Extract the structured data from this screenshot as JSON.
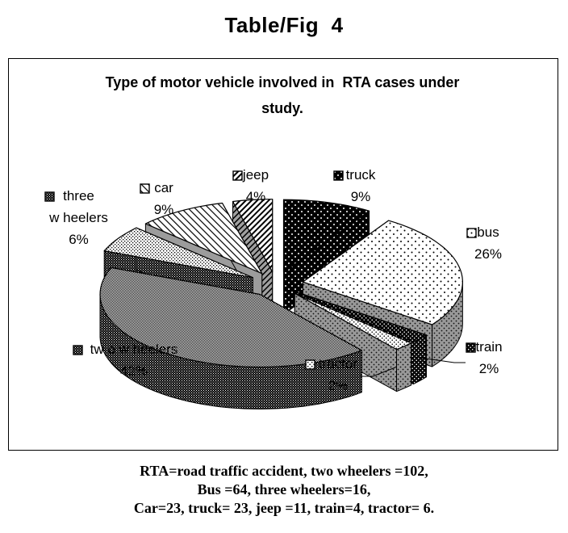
{
  "page": {
    "fig_title": "Table/Fig  4"
  },
  "chart": {
    "title_lines": [
      "Type of motor vehicle involved in  RTA cases under",
      "study."
    ]
  },
  "chart_data": {
    "type": "pie",
    "style": "3d-exploded",
    "title": "Type of motor vehicle involved in RTA cases under study.",
    "start_angle_deg": 0,
    "direction": "clockwise",
    "legend_position": "labels-around-slices",
    "slices": [
      {
        "label": "truck",
        "percent": 9,
        "count": 23,
        "top_pattern": "black-dots",
        "side_pattern": "black-dots"
      },
      {
        "label": "bus",
        "percent": 26,
        "count": 64,
        "top_pattern": "white-dots",
        "side_pattern": "gray-dots"
      },
      {
        "label": "train",
        "percent": 2,
        "count": 4,
        "top_pattern": "fine-black-dots",
        "side_pattern": "fine-black-dots"
      },
      {
        "label": "tractor",
        "percent": 2,
        "count": 6,
        "top_pattern": "light-dots",
        "side_pattern": "gray-dots"
      },
      {
        "label": "two wheelers",
        "percent": 42,
        "count": 102,
        "top_pattern": "checker50",
        "side_pattern": "dark-dither"
      },
      {
        "label": "three wheelers",
        "percent": 6,
        "count": 16,
        "top_pattern": "dither25",
        "side_pattern": "dark-dither"
      },
      {
        "label": "car",
        "percent": 9,
        "count": 23,
        "top_pattern": "diag-thin",
        "side_pattern": "gray-solid"
      },
      {
        "label": "jeep",
        "percent": 4,
        "count": 11,
        "top_pattern": "diag-thick",
        "side_pattern": "gray-diag"
      }
    ]
  },
  "labels": {
    "three_wheelers": {
      "lines": [
        "three",
        "w heelers",
        "6%"
      ],
      "pattern": "dark-dither"
    },
    "car": {
      "lines": [
        "car",
        "9%"
      ],
      "pattern": "diag-thin"
    },
    "jeep": {
      "lines": [
        "jeep",
        "4%"
      ],
      "pattern": "diag-thick"
    },
    "truck": {
      "lines": [
        "truck",
        "9%"
      ],
      "pattern": "black-dots"
    },
    "bus": {
      "lines": [
        "bus",
        "26%"
      ],
      "pattern": "white-dots"
    },
    "train": {
      "lines": [
        "train",
        "2%"
      ],
      "pattern": "fine-black-dots"
    },
    "tractor": {
      "lines": [
        "tractor",
        "2%"
      ],
      "pattern": "light-dots"
    },
    "two_wheelers": {
      "lines": [
        "tw o w heelers",
        "42%"
      ],
      "pattern": "dark-dither"
    }
  },
  "footer": {
    "lines": [
      "RTA=road traffic accident, two wheelers =102,",
      "Bus =64, three wheelers=16,",
      "Car=23, truck= 23, jeep =11, train=4, tractor= 6."
    ]
  },
  "colors": {
    "ink": "#000000",
    "paper": "#ffffff",
    "side_gray": "#9c9c9c"
  }
}
